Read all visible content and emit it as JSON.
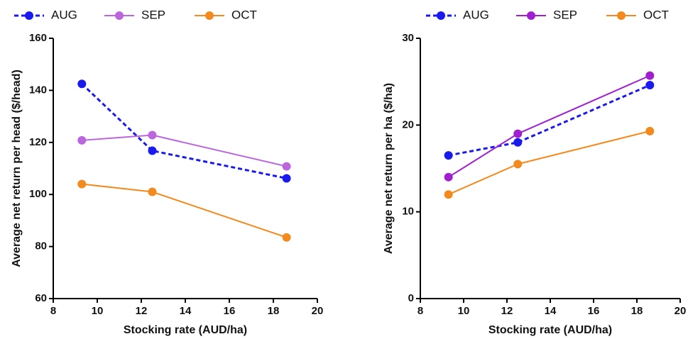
{
  "chart_data": [
    {
      "type": "line",
      "x_label": "Stocking rate (AUD/ha)",
      "y_label": "Average net return per head ($/head)",
      "x": [
        9.3,
        12.5,
        18.6
      ],
      "xlim": [
        8,
        20
      ],
      "xticks": [
        8,
        10,
        12,
        14,
        16,
        18,
        20
      ],
      "ylim": [
        60,
        160
      ],
      "yticks": [
        60,
        80,
        100,
        120,
        140,
        160
      ],
      "series": [
        {
          "name": "AUG",
          "color": "#1a1aee",
          "style": "dashed",
          "values": [
            142.5,
            116.8,
            106.2
          ]
        },
        {
          "name": "SEP",
          "color": "#bb66dd",
          "style": "solid",
          "values": [
            120.8,
            122.8,
            110.8
          ]
        },
        {
          "name": "OCT",
          "color": "#f28a1e",
          "style": "solid",
          "values": [
            104,
            101,
            83.5
          ]
        }
      ]
    },
    {
      "type": "line",
      "x_label": "Stocking rate (AUD/ha)",
      "y_label": "Average net return per ha ($/ha)",
      "x": [
        9.3,
        12.5,
        18.6
      ],
      "xlim": [
        8,
        20
      ],
      "xticks": [
        8,
        10,
        12,
        14,
        16,
        18,
        20
      ],
      "ylim": [
        0,
        30
      ],
      "yticks": [
        0,
        10,
        20,
        30
      ],
      "series": [
        {
          "name": "AUG",
          "color": "#1a1aee",
          "style": "dashed",
          "values": [
            16.5,
            18,
            24.6
          ]
        },
        {
          "name": "SEP",
          "color": "#a020d0",
          "style": "solid",
          "values": [
            14,
            19,
            25.7
          ]
        },
        {
          "name": "OCT",
          "color": "#f28a1e",
          "style": "solid",
          "values": [
            12,
            15.5,
            19.3
          ]
        }
      ]
    }
  ]
}
